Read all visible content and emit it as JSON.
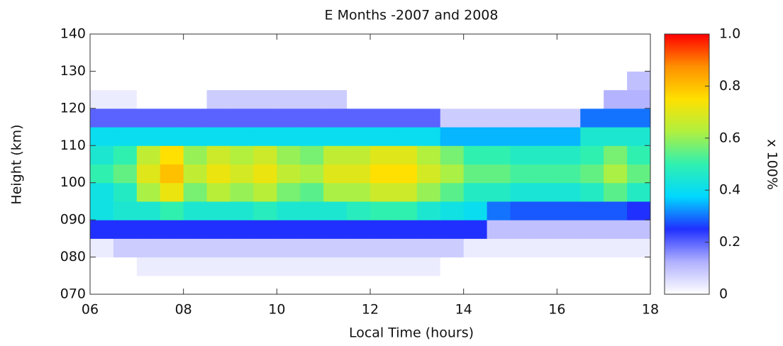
{
  "chart_data": {
    "type": "heatmap",
    "title": "E Months -2007 and 2008",
    "x_label": "Local Time (hours)",
    "y_label": "Height (km)",
    "colorbar_label": "x 100%",
    "xbins": [
      6,
      6.5,
      7,
      7.5,
      8,
      8.5,
      9,
      9.5,
      10,
      10.5,
      11,
      11.5,
      12,
      12.5,
      13,
      13.5,
      14,
      14.5,
      15,
      15.5,
      16,
      16.5,
      17,
      17.5,
      18
    ],
    "ybins": [
      70,
      75,
      80,
      85,
      90,
      95,
      100,
      105,
      110,
      115,
      120,
      125,
      130,
      135,
      140
    ],
    "values": [
      [
        0,
        0,
        0,
        0,
        0,
        0,
        0,
        0,
        0,
        0,
        0,
        0,
        0,
        0,
        0,
        0,
        0,
        0,
        0,
        0,
        0,
        0,
        0,
        0
      ],
      [
        0,
        0,
        0.03,
        0.03,
        0.03,
        0.03,
        0.03,
        0.03,
        0.03,
        0.03,
        0.03,
        0.03,
        0.03,
        0.03,
        0.03,
        0,
        0,
        0,
        0,
        0,
        0,
        0,
        0,
        0
      ],
      [
        0.03,
        0.08,
        0.08,
        0.08,
        0.08,
        0.08,
        0.08,
        0.08,
        0.08,
        0.08,
        0.08,
        0.08,
        0.08,
        0.08,
        0.08,
        0.08,
        0.03,
        0.03,
        0.03,
        0.03,
        0.03,
        0.03,
        0.03,
        0.03
      ],
      [
        0.25,
        0.25,
        0.25,
        0.25,
        0.25,
        0.25,
        0.25,
        0.25,
        0.25,
        0.25,
        0.25,
        0.25,
        0.25,
        0.25,
        0.25,
        0.25,
        0.25,
        0.1,
        0.1,
        0.1,
        0.1,
        0.1,
        0.1,
        0.1
      ],
      [
        0.42,
        0.45,
        0.45,
        0.5,
        0.45,
        0.45,
        0.45,
        0.48,
        0.45,
        0.45,
        0.45,
        0.48,
        0.5,
        0.5,
        0.45,
        0.42,
        0.4,
        0.3,
        0.28,
        0.28,
        0.28,
        0.28,
        0.28,
        0.25
      ],
      [
        0.42,
        0.47,
        0.62,
        0.72,
        0.57,
        0.64,
        0.6,
        0.64,
        0.57,
        0.54,
        0.62,
        0.62,
        0.67,
        0.67,
        0.6,
        0.54,
        0.47,
        0.47,
        0.44,
        0.44,
        0.44,
        0.47,
        0.54,
        0.47
      ],
      [
        0.5,
        0.55,
        0.7,
        0.8,
        0.65,
        0.72,
        0.68,
        0.72,
        0.65,
        0.62,
        0.7,
        0.7,
        0.75,
        0.75,
        0.68,
        0.62,
        0.55,
        0.55,
        0.52,
        0.52,
        0.52,
        0.55,
        0.62,
        0.55
      ],
      [
        0.45,
        0.5,
        0.65,
        0.75,
        0.6,
        0.67,
        0.63,
        0.67,
        0.6,
        0.57,
        0.65,
        0.65,
        0.7,
        0.7,
        0.63,
        0.57,
        0.5,
        0.5,
        0.47,
        0.47,
        0.47,
        0.5,
        0.57,
        0.5
      ],
      [
        0.4,
        0.4,
        0.4,
        0.4,
        0.4,
        0.4,
        0.4,
        0.4,
        0.4,
        0.4,
        0.4,
        0.4,
        0.4,
        0.4,
        0.4,
        0.35,
        0.35,
        0.35,
        0.35,
        0.35,
        0.35,
        0.45,
        0.45,
        0.45
      ],
      [
        0.2,
        0.2,
        0.2,
        0.2,
        0.2,
        0.2,
        0.2,
        0.2,
        0.2,
        0.2,
        0.2,
        0.2,
        0.2,
        0.2,
        0.2,
        0.08,
        0.08,
        0.08,
        0.08,
        0.08,
        0.08,
        0.3,
        0.3,
        0.3
      ],
      [
        0.03,
        0.03,
        0,
        0,
        0,
        0.08,
        0.08,
        0.08,
        0.08,
        0.08,
        0.08,
        0,
        0,
        0,
        0,
        0,
        0,
        0,
        0,
        0,
        0,
        0,
        0.12,
        0.12
      ],
      [
        0,
        0,
        0,
        0,
        0,
        0,
        0,
        0,
        0,
        0,
        0,
        0,
        0,
        0,
        0,
        0,
        0,
        0,
        0,
        0,
        0,
        0,
        0,
        0.1
      ],
      [
        0,
        0,
        0,
        0,
        0,
        0,
        0,
        0,
        0,
        0,
        0,
        0,
        0,
        0,
        0,
        0,
        0,
        0,
        0,
        0,
        0,
        0,
        0,
        0
      ],
      [
        0,
        0,
        0,
        0,
        0,
        0,
        0,
        0,
        0,
        0,
        0,
        0,
        0,
        0,
        0,
        0,
        0,
        0,
        0,
        0,
        0,
        0,
        0,
        0
      ]
    ],
    "xlim": [
      6,
      18
    ],
    "xticks": [
      {
        "value": 6,
        "label": "06"
      },
      {
        "value": 8,
        "label": "08"
      },
      10,
      12,
      14,
      16,
      18
    ],
    "ylim": [
      70,
      140
    ],
    "yticks": [
      {
        "value": 70,
        "label": "070"
      },
      {
        "value": 80,
        "label": "080"
      },
      {
        "value": 90,
        "label": "090"
      },
      100,
      110,
      120,
      130,
      140
    ],
    "clim": [
      0,
      1
    ],
    "cticks": [
      0,
      0.2,
      0.4,
      0.6,
      0.8,
      {
        "value": 1,
        "label": "1.0"
      }
    ],
    "colorscale": [
      "#ffffff",
      "#b0b0ff",
      "#2030ff",
      "#00d8ff",
      "#30f0b0",
      "#b0f040",
      "#ffe000",
      "#ff9000",
      "#ff0000"
    ]
  }
}
